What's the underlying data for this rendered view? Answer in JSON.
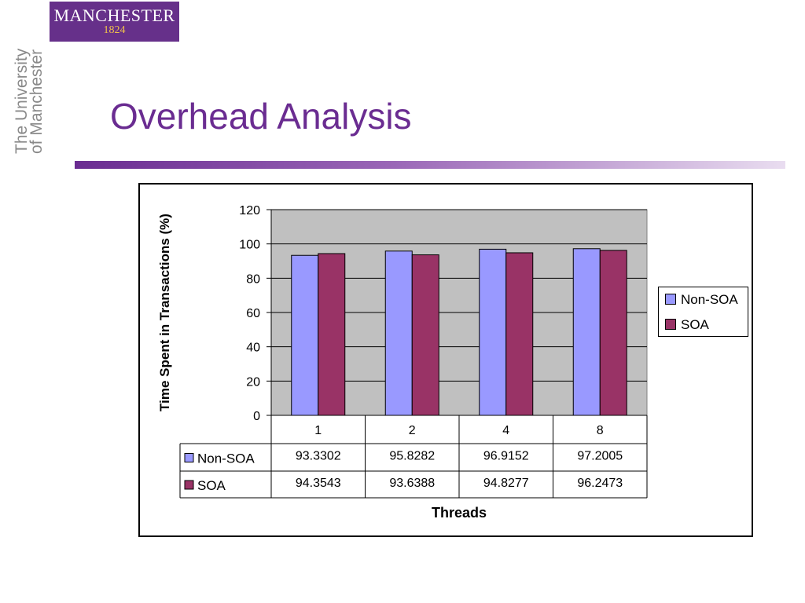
{
  "logo": {
    "name": "MANCHESTER",
    "year": "1824"
  },
  "university_text": [
    "The University",
    "of Manchester"
  ],
  "slide_title": "Overhead Analysis",
  "chart_data": {
    "type": "bar",
    "categories": [
      "1",
      "2",
      "4",
      "8"
    ],
    "series": [
      {
        "name": "Non-SOA",
        "color": "#9999ff",
        "values": [
          93.3302,
          95.8282,
          96.9152,
          97.2005
        ],
        "labels": [
          "93.3302",
          "95.8282",
          "96.9152",
          "97.2005"
        ]
      },
      {
        "name": "SOA",
        "color": "#993366",
        "values": [
          94.3543,
          93.6388,
          94.8277,
          96.2473
        ],
        "labels": [
          "94.3543",
          "93.6388",
          "94.8277",
          "96.2473"
        ]
      }
    ],
    "ylabel": "Time Spent in Transactions (%)",
    "xlabel": "Threads",
    "ylim": [
      0,
      120
    ],
    "yticks": [
      "0",
      "20",
      "40",
      "60",
      "80",
      "100",
      "120"
    ],
    "grid": true,
    "plot_background": "#c0c0c0",
    "data_table": true,
    "legend_position": "right"
  }
}
